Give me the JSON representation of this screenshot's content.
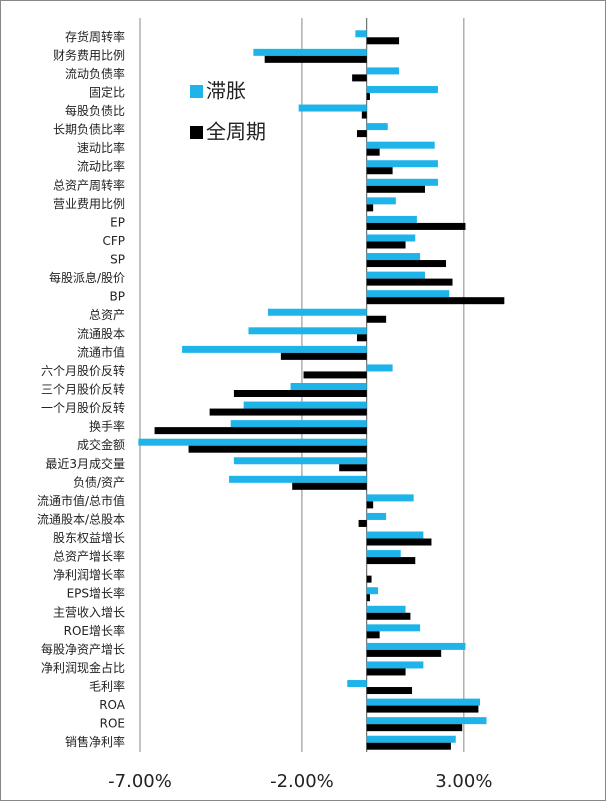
{
  "chart_data": {
    "type": "barh",
    "categories": [
      "存货周转率",
      "财务费用比例",
      "流动负债率",
      "固定比",
      "每股负债比",
      "长期负债比率",
      "速动比率",
      "流动比率",
      "总资产周转率",
      "营业费用比例",
      "EP",
      "CFP",
      "SP",
      "每股派息/股价",
      "BP",
      "总资产",
      "流通股本",
      "流通市值",
      "六个月股价反转",
      "三个月股价反转",
      "一个月股价反转",
      "换手率",
      "成交金额",
      "最近3月成交量",
      "负债/资产",
      "流通市值/总市值",
      "流通股本/总股本",
      "股东权益增长",
      "总资产增长率",
      "净利润增长率",
      "EPS增长率",
      "主营收入增长",
      "ROE增长率",
      "每股净资产增长",
      "净利润现金占比",
      "毛利率",
      "ROA",
      "ROE",
      "销售净利率"
    ],
    "series": [
      {
        "name": "滞胀",
        "color": "#1eb4ea",
        "values": [
          -0.35,
          -3.5,
          1.0,
          2.2,
          -2.1,
          0.65,
          2.1,
          2.2,
          2.2,
          0.9,
          1.55,
          1.5,
          1.65,
          1.8,
          2.55,
          -3.05,
          -3.65,
          -5.7,
          0.8,
          -2.35,
          -3.8,
          -4.2,
          -7.05,
          -4.1,
          -4.25,
          1.45,
          0.6,
          1.75,
          1.05,
          0,
          0.35,
          1.2,
          1.65,
          3.05,
          1.75,
          -0.6,
          3.5,
          3.7,
          2.75
        ]
      },
      {
        "name": "全周期",
        "color": "#000000",
        "values": [
          1.0,
          -3.15,
          -0.45,
          0.1,
          -0.15,
          -0.3,
          0.4,
          0.8,
          1.8,
          0.2,
          3.05,
          1.2,
          2.45,
          2.65,
          4.25,
          0.6,
          -0.3,
          -2.65,
          -1.95,
          -4.1,
          -4.85,
          -6.55,
          -5.5,
          -0.85,
          -2.3,
          0.2,
          -0.25,
          2.0,
          1.5,
          0.15,
          0.1,
          1.35,
          0.4,
          2.3,
          1.2,
          1.4,
          3.45,
          2.95,
          2.6
        ]
      }
    ],
    "xlim": [
      -7,
      6
    ],
    "xticks": [
      {
        "value": -7,
        "label": "-7.00%"
      },
      {
        "value": -2,
        "label": "-2.00%"
      },
      {
        "value": 3,
        "label": "3.00%"
      }
    ],
    "grid": true,
    "legend_position": "upper left"
  }
}
